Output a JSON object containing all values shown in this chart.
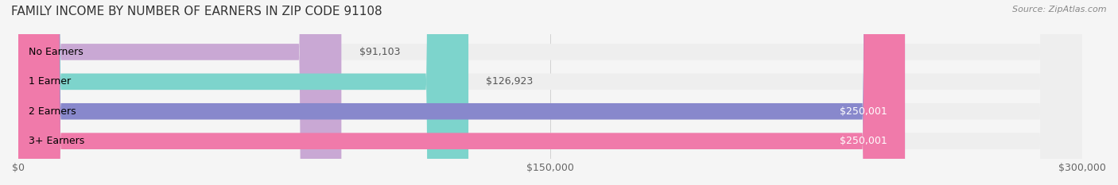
{
  "title": "FAMILY INCOME BY NUMBER OF EARNERS IN ZIP CODE 91108",
  "source": "Source: ZipAtlas.com",
  "categories": [
    "No Earners",
    "1 Earner",
    "2 Earners",
    "3+ Earners"
  ],
  "values": [
    91103,
    126923,
    250001,
    250001
  ],
  "bar_colors": [
    "#c9a8d4",
    "#7dd4cc",
    "#8888cc",
    "#f07aaa"
  ],
  "bar_bg_color": "#eeeeee",
  "value_labels": [
    "$91,103",
    "$126,923",
    "$250,001",
    "$250,001"
  ],
  "xlim": [
    0,
    300000
  ],
  "xtick_values": [
    0,
    150000,
    300000
  ],
  "xtick_labels": [
    "$0",
    "$150,000",
    "$300,000"
  ],
  "title_fontsize": 11,
  "source_fontsize": 8,
  "label_fontsize": 9,
  "bar_height": 0.55,
  "background_color": "#f5f5f5",
  "fig_width": 14.06,
  "fig_height": 2.33,
  "dpi": 100
}
